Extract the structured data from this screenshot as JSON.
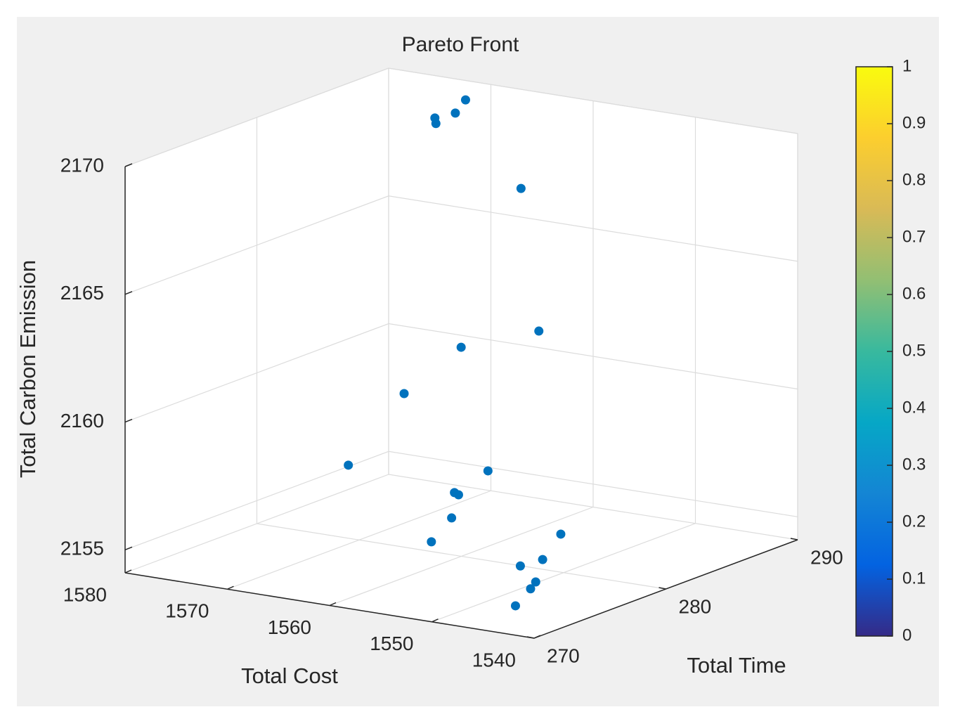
{
  "chart_data": {
    "type": "scatter3d",
    "title": "Pareto Front",
    "xlabel": "Total Cost",
    "ylabel": "Total Time",
    "zlabel": "Total Carbon Emission",
    "x": [
      1569.9,
      1570.9,
      1572.9,
      1572.8,
      1561.9,
      1555.0,
      1562.6,
      1565.6,
      1565.9,
      1557.4,
      1558.1,
      1557.7,
      1555.8,
      1555.2,
      1547.7,
      1546.9,
      1546.5,
      1545.0,
      1545.5,
      1544.4
    ],
    "y": [
      288,
      288,
      288,
      288,
      286,
      282,
      282,
      280,
      276,
      280,
      278,
      278,
      276,
      274,
      278,
      276,
      274,
      274,
      274,
      272
    ],
    "z": [
      2169.79,
      2169.21,
      2168.89,
      2168.68,
      2167.22,
      2162.85,
      2161.73,
      2160.11,
      2158.06,
      2157.61,
      2157.1,
      2157.04,
      2156.64,
      2156.13,
      2156.14,
      2155.58,
      2155.74,
      2155.21,
      2154.91,
      2154.7
    ],
    "xlim": [
      1540,
      1580
    ],
    "xticks": [
      1540,
      1550,
      1560,
      1570,
      1580
    ],
    "ylim": [
      270,
      290
    ],
    "yticks": [
      270,
      280,
      290
    ],
    "zlim": [
      2154.1,
      2170
    ],
    "zticks": [
      2155,
      2160,
      2165,
      2170
    ],
    "color": "#0072bd",
    "grid": true,
    "colorbar": {
      "lim": [
        0,
        1
      ],
      "ticks": [
        0,
        0.1,
        0.2,
        0.3,
        0.4,
        0.5,
        0.6,
        0.7,
        0.8,
        0.9,
        1
      ],
      "colormap": [
        "#352a87",
        "#0363e1",
        "#1485d4",
        "#06a7c6",
        "#38b99e",
        "#92bf73",
        "#d9ba56",
        "#fcce2e",
        "#f9fb0e"
      ]
    }
  }
}
